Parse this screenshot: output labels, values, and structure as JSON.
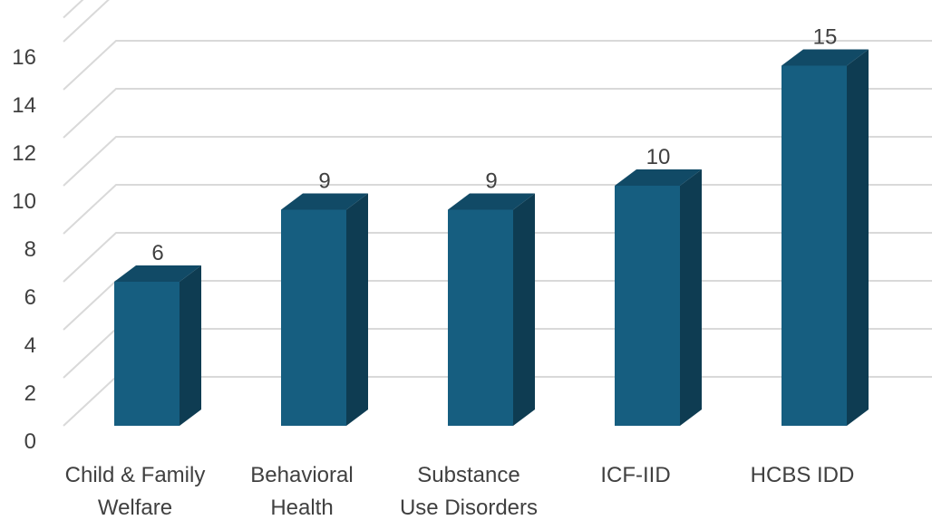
{
  "chart_data": {
    "type": "bar",
    "categories": [
      [
        "Child & Family",
        "Welfare"
      ],
      [
        "Behavioral",
        "Health"
      ],
      [
        "Substance",
        "Use Disorders"
      ],
      [
        "ICF-IID"
      ],
      [
        "HCBS IDD"
      ]
    ],
    "values": [
      6,
      9,
      9,
      10,
      15
    ],
    "data_labels": [
      "6",
      "9",
      "9",
      "10",
      "15"
    ],
    "y_ticks": [
      "0",
      "2",
      "4",
      "6",
      "8",
      "10",
      "12",
      "14",
      "16"
    ],
    "ylim": [
      0,
      17
    ],
    "grid": true,
    "three_d": true,
    "colors": {
      "bar_front": "#165E80",
      "bar_side": "#0E3C52",
      "bar_top": "#114A66",
      "grid": "#D9D9D9",
      "text": "#404040"
    }
  }
}
